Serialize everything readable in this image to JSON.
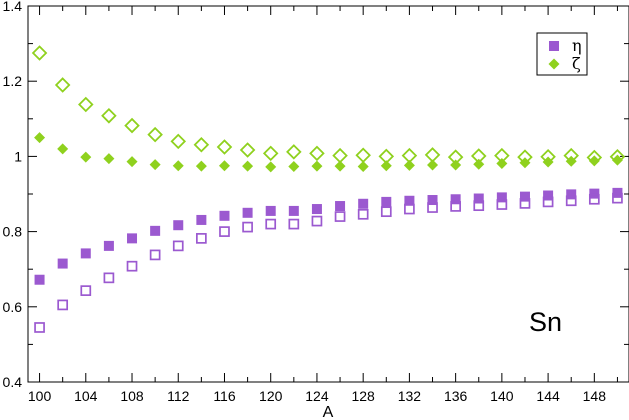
{
  "chart_data": {
    "type": "scatter",
    "xlabel": "A",
    "ylabel": "",
    "xlim": [
      99,
      151
    ],
    "ylim": [
      0.4,
      1.4
    ],
    "xticks": [
      100,
      104,
      108,
      112,
      116,
      120,
      124,
      128,
      132,
      136,
      140,
      144,
      148
    ],
    "yticks": [
      0.4,
      0.6,
      0.8,
      1.0,
      1.2,
      1.4
    ],
    "ytick_labels": [
      "0.4",
      "0.6",
      "0.8",
      "1",
      "1.2",
      "1.4"
    ],
    "grid": false,
    "legend_position": "top-right",
    "annotation": "Sn",
    "x": [
      100,
      102,
      104,
      106,
      108,
      110,
      112,
      114,
      116,
      118,
      120,
      122,
      124,
      126,
      128,
      130,
      132,
      134,
      136,
      138,
      140,
      142,
      144,
      146,
      148,
      150
    ],
    "series": [
      {
        "name": "η",
        "marker": "square-filled",
        "color": "#9b59d0",
        "legend": true,
        "values": [
          0.672,
          0.715,
          0.742,
          0.762,
          0.782,
          0.802,
          0.817,
          0.831,
          0.842,
          0.85,
          0.855,
          0.855,
          0.86,
          0.868,
          0.874,
          0.879,
          0.882,
          0.884,
          0.886,
          0.888,
          0.891,
          0.893,
          0.896,
          0.899,
          0.901,
          0.903
        ]
      },
      {
        "name": "",
        "marker": "square-open",
        "color": "#9b59d0",
        "legend": false,
        "values": [
          0.545,
          0.605,
          0.643,
          0.677,
          0.708,
          0.738,
          0.762,
          0.782,
          0.8,
          0.812,
          0.82,
          0.82,
          0.828,
          0.84,
          0.846,
          0.853,
          0.86,
          0.864,
          0.867,
          0.869,
          0.872,
          0.875,
          0.879,
          0.882,
          0.886,
          0.889
        ]
      },
      {
        "name": "ζ",
        "marker": "diamond-filled",
        "color": "#8fd11e",
        "legend": true,
        "values": [
          1.05,
          1.02,
          0.998,
          0.994,
          0.986,
          0.978,
          0.975,
          0.974,
          0.975,
          0.974,
          0.972,
          0.973,
          0.974,
          0.974,
          0.973,
          0.975,
          0.976,
          0.977,
          0.977,
          0.979,
          0.981,
          0.983,
          0.985,
          0.987,
          0.988,
          0.99
        ]
      },
      {
        "name": "",
        "marker": "diamond-open",
        "color": "#8fd11e",
        "legend": false,
        "values": [
          1.275,
          1.19,
          1.138,
          1.108,
          1.082,
          1.058,
          1.04,
          1.031,
          1.025,
          1.017,
          1.008,
          1.012,
          1.008,
          1.002,
          1.003,
          1.0,
          1.002,
          1.004,
          0.998,
          1.001,
          1.002,
          0.998,
          0.999,
          1.002,
          0.997,
          0.999
        ]
      }
    ]
  }
}
